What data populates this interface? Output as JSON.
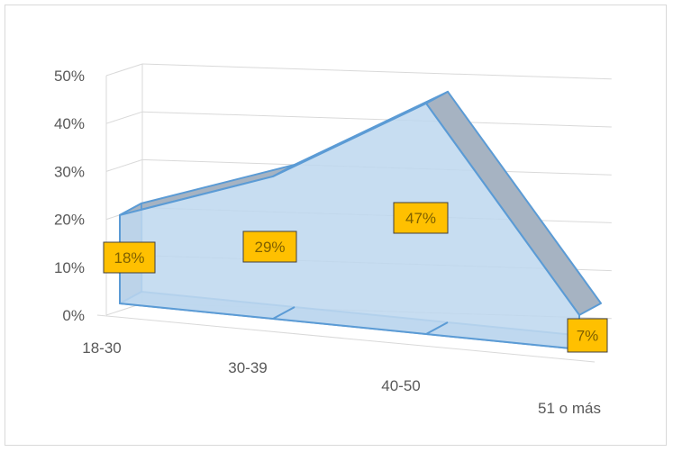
{
  "chart_data": {
    "type": "area",
    "subtype": "3d-area",
    "categories": [
      "18-30",
      "30-39",
      "40-50",
      "51 o más"
    ],
    "series": [
      {
        "values": [
          18,
          29,
          47,
          7
        ],
        "data_labels": [
          "18%",
          "29%",
          "47%",
          "7%"
        ]
      }
    ],
    "y_ticks": [
      "0%",
      "10%",
      "20%",
      "30%",
      "40%",
      "50%"
    ],
    "ylim": [
      0,
      50
    ],
    "grid": true,
    "legend": "none",
    "colors": {
      "fill": "#bdd7ee",
      "stroke": "#5b9bd5",
      "top_face": "#a6b3c2",
      "label_bg": "#ffc000",
      "label_border": "#404040",
      "label_text": "#7f6000",
      "grid": "#d9d9d9",
      "tick_text": "#595959"
    }
  }
}
